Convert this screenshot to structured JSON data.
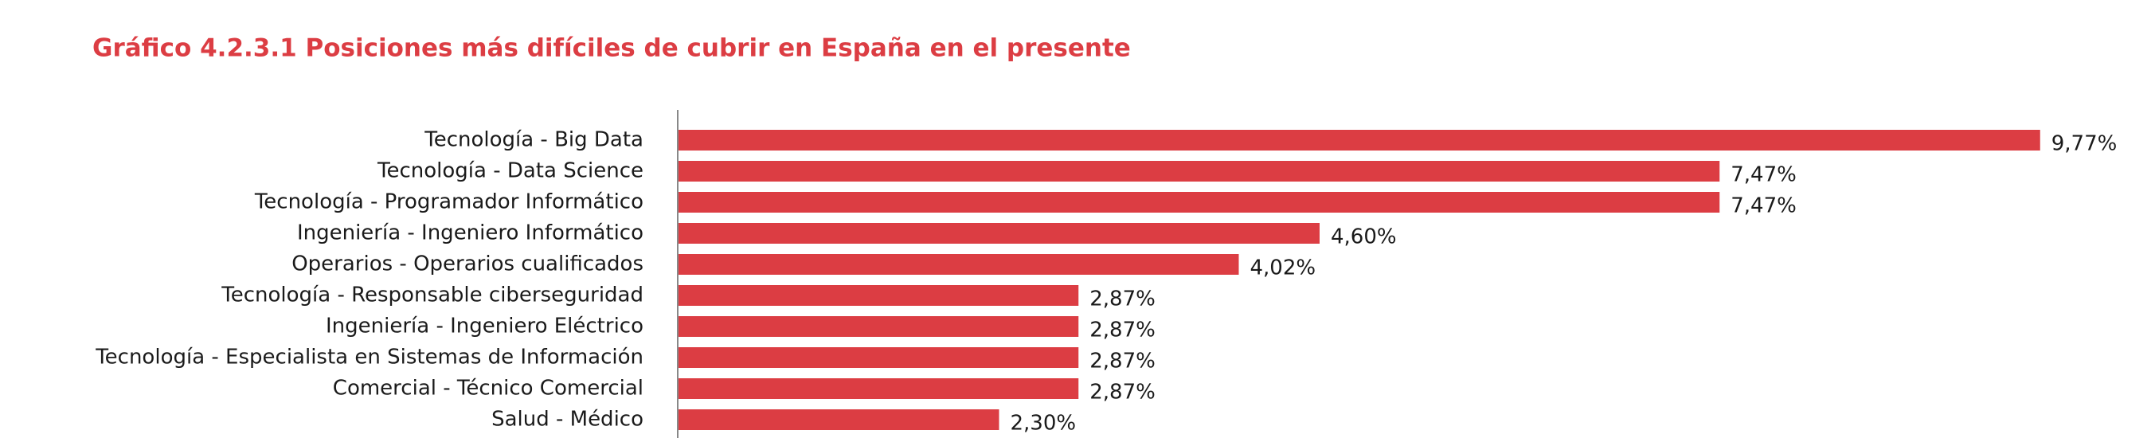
{
  "chart_data": {
    "type": "barh",
    "title": "Gráfico 4.2.3.1 Posiciones más difíciles de cubrir en España en el presente",
    "categories": [
      "Tecnología - Big Data",
      "Tecnología - Data Science",
      "Tecnología - Programador Informático",
      "Ingeniería - Ingeniero Informático",
      "Operarios - Operarios cualificados",
      "Tecnología - Responsable ciberseguridad",
      "Ingeniería - Ingeniero Eléctrico",
      "Tecnología - Especialista en Sistemas de Información",
      "Comercial - Técnico Comercial",
      "Salud - Médico"
    ],
    "values": [
      9.77,
      7.47,
      7.47,
      4.6,
      4.02,
      2.87,
      2.87,
      2.87,
      2.87,
      2.3
    ],
    "value_labels": [
      "9,77%",
      "7,47%",
      "7,47%",
      "4,60%",
      "4,02%",
      "2,87%",
      "2,87%",
      "2,87%",
      "2,87%",
      "2,30%"
    ],
    "color": "#dc3d43"
  }
}
